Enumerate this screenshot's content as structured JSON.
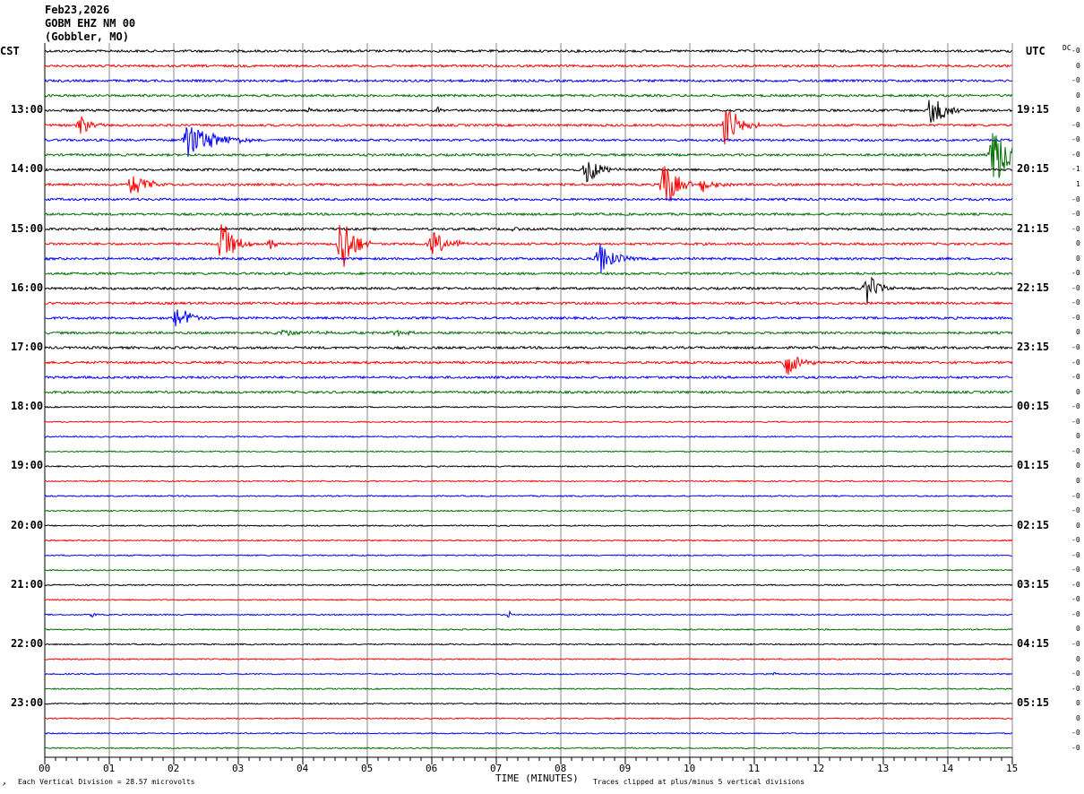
{
  "header": {
    "date": "Feb23,2026",
    "station": "GOBM EHZ NM 00",
    "location": "(Gobbler, MO)"
  },
  "left_timezone": "CST",
  "right_timezone": "UTC",
  "dc_label": "DC",
  "footer": {
    "scale_text": "Each Vertical Division =   28.57 microvolts",
    "axis_title": "TIME (MINUTES)",
    "clip_text": "Traces clipped at plus/minus 5 vertical divisions",
    "corner_mark": "↗"
  },
  "chart_data": {
    "type": "line",
    "subtype": "helicorder",
    "xlabel": "TIME (MINUTES)",
    "xlim": [
      0,
      15
    ],
    "x_ticks": [
      "00",
      "01",
      "02",
      "03",
      "04",
      "05",
      "06",
      "07",
      "08",
      "09",
      "10",
      "11",
      "12",
      "13",
      "14",
      "15"
    ],
    "grid": "vertical lines each minute",
    "row_minutes": 15,
    "row_count": 48,
    "trace_colors": [
      "#000000",
      "#ff0000",
      "#0000ff",
      "#007000"
    ],
    "left_hour_labels": [
      {
        "row": 4,
        "label": "13:00"
      },
      {
        "row": 8,
        "label": "14:00"
      },
      {
        "row": 12,
        "label": "15:00"
      },
      {
        "row": 16,
        "label": "16:00"
      },
      {
        "row": 20,
        "label": "17:00"
      },
      {
        "row": 24,
        "label": "18:00"
      },
      {
        "row": 28,
        "label": "19:00"
      },
      {
        "row": 32,
        "label": "20:00"
      },
      {
        "row": 36,
        "label": "21:00"
      },
      {
        "row": 40,
        "label": "22:00"
      },
      {
        "row": 44,
        "label": "23:00"
      }
    ],
    "right_hour_labels": [
      {
        "row": 4,
        "label": "19:15"
      },
      {
        "row": 8,
        "label": "20:15"
      },
      {
        "row": 12,
        "label": "21:15"
      },
      {
        "row": 16,
        "label": "22:15"
      },
      {
        "row": 20,
        "label": "23:15"
      },
      {
        "row": 24,
        "label": "00:15"
      },
      {
        "row": 28,
        "label": "01:15"
      },
      {
        "row": 32,
        "label": "02:15"
      },
      {
        "row": 36,
        "label": "03:15"
      },
      {
        "row": 40,
        "label": "04:15"
      },
      {
        "row": 44,
        "label": "05:15"
      }
    ],
    "dc_offsets": [
      "-0",
      "0",
      "-0",
      "0",
      "0",
      "-0",
      "-0",
      "-0",
      "-1",
      "1",
      "-0",
      "-0",
      "-0",
      "0",
      "0",
      "-0",
      "-0",
      "-0",
      "-0",
      "0",
      "-0",
      "-0",
      "-0",
      "0",
      "-0",
      "-0",
      "0",
      "-0",
      "0",
      "0",
      "-0",
      "-0",
      "0",
      "-0",
      "-0",
      "-0",
      "-0",
      "-0",
      "-0",
      "0",
      "-0",
      "0",
      "-0",
      "-0",
      "0",
      "0",
      "-0",
      "-0"
    ],
    "clip_divisions": 5,
    "events": [
      {
        "row": 4,
        "minute": 13.75,
        "amp": 3.0,
        "dur": 0.5
      },
      {
        "row": 4,
        "minute": 4.1,
        "amp": 0.5,
        "dur": 0.1
      },
      {
        "row": 4,
        "minute": 6.1,
        "amp": 0.5,
        "dur": 0.1
      },
      {
        "row": 5,
        "minute": 0.55,
        "amp": 1.5,
        "dur": 0.4
      },
      {
        "row": 5,
        "minute": 10.55,
        "amp": 3.2,
        "dur": 0.6
      },
      {
        "row": 6,
        "minute": 2.2,
        "amp": 2.5,
        "dur": 1.2
      },
      {
        "row": 7,
        "minute": 14.7,
        "amp": 5.0,
        "dur": 0.6
      },
      {
        "row": 8,
        "minute": 8.4,
        "amp": 2.0,
        "dur": 0.6
      },
      {
        "row": 9,
        "minute": 1.35,
        "amp": 2.0,
        "dur": 0.6
      },
      {
        "row": 9,
        "minute": 9.6,
        "amp": 4.0,
        "dur": 0.5
      },
      {
        "row": 9,
        "minute": 10.2,
        "amp": 1.2,
        "dur": 0.5
      },
      {
        "row": 12,
        "minute": 7.3,
        "amp": 0.6,
        "dur": 0.15
      },
      {
        "row": 13,
        "minute": 2.75,
        "amp": 3.5,
        "dur": 0.5
      },
      {
        "row": 13,
        "minute": 3.5,
        "amp": 0.9,
        "dur": 0.2
      },
      {
        "row": 13,
        "minute": 4.6,
        "amp": 5.0,
        "dur": 0.5
      },
      {
        "row": 13,
        "minute": 6.0,
        "amp": 1.8,
        "dur": 0.7
      },
      {
        "row": 14,
        "minute": 8.6,
        "amp": 2.4,
        "dur": 0.6
      },
      {
        "row": 16,
        "minute": 12.75,
        "amp": 2.2,
        "dur": 0.5
      },
      {
        "row": 18,
        "minute": 2.05,
        "amp": 1.8,
        "dur": 0.6
      },
      {
        "row": 19,
        "minute": 3.6,
        "amp": 0.4,
        "dur": 1.6
      },
      {
        "row": 19,
        "minute": 5.4,
        "amp": 0.35,
        "dur": 0.8
      },
      {
        "row": 21,
        "minute": 11.5,
        "amp": 2.0,
        "dur": 0.6
      },
      {
        "row": 38,
        "minute": 0.75,
        "amp": 0.5,
        "dur": 0.08
      },
      {
        "row": 38,
        "minute": 7.2,
        "amp": 0.5,
        "dur": 0.08
      },
      {
        "row": 42,
        "minute": 11.3,
        "amp": 0.4,
        "dur": 0.08
      }
    ]
  }
}
